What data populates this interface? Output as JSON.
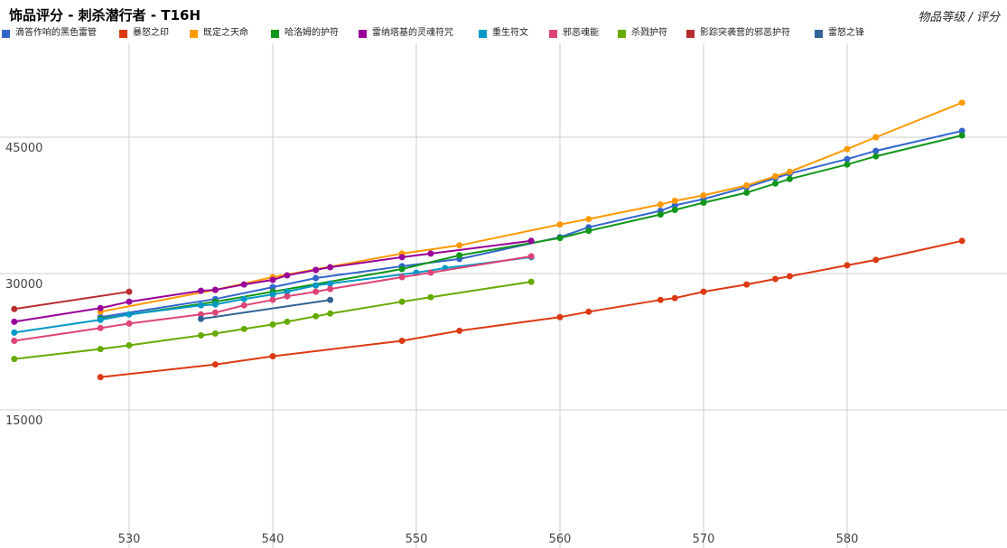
{
  "title": "饰品评分 - 刺杀潜行者 - T16H",
  "axis_note": "物品等级 / 评分",
  "chart_data": {
    "type": "line",
    "title": "饰品评分 - 刺杀潜行者 - T16H",
    "xlabel": "物品等级",
    "ylabel": "评分",
    "xlim": [
      522,
      588
    ],
    "ylim": [
      0,
      60000
    ],
    "x_ticks": [
      530,
      540,
      550,
      560,
      570,
      580
    ],
    "y_ticks": [
      15000,
      30000,
      45000
    ],
    "grid": true,
    "legend_position": "top",
    "series": [
      {
        "name": "滴答作响的黑色雷管",
        "color": "#3366cc",
        "x": [
          528,
          536,
          540,
          543,
          549,
          553,
          560,
          562,
          567,
          568,
          570,
          573,
          575,
          576,
          580,
          582,
          588
        ],
        "y": [
          25200,
          27200,
          28500,
          29500,
          30800,
          31600,
          34000,
          35100,
          36900,
          37500,
          38200,
          39500,
          40500,
          41000,
          42600,
          43500,
          45700
        ]
      },
      {
        "name": "暴怒之印",
        "color": "#dc3912",
        "x": [
          528,
          536,
          540,
          549,
          553,
          560,
          562,
          567,
          568,
          570,
          573,
          575,
          576,
          580,
          582,
          588
        ],
        "y": [
          18600,
          20000,
          20900,
          22600,
          23700,
          25200,
          25800,
          27100,
          27300,
          28000,
          28800,
          29400,
          29700,
          30900,
          31500,
          33600
        ]
      },
      {
        "name": "既定之天命",
        "color": "#ff9900",
        "x": [
          528,
          536,
          540,
          549,
          553,
          560,
          562,
          567,
          568,
          570,
          573,
          575,
          576,
          580,
          582,
          588
        ],
        "y": [
          25800,
          28200,
          29600,
          32200,
          33100,
          35400,
          36000,
          37600,
          38000,
          38600,
          39700,
          40700,
          41200,
          43700,
          45000,
          48800
        ]
      },
      {
        "name": "哈洛姆的护符",
        "color": "#109618",
        "x": [
          528,
          536,
          540,
          549,
          553,
          560,
          562,
          567,
          568,
          570,
          573,
          575,
          576,
          580,
          582,
          588
        ],
        "y": [
          25000,
          26900,
          28000,
          30500,
          32000,
          33900,
          34700,
          36500,
          37000,
          37800,
          38900,
          39900,
          40400,
          42000,
          42900,
          45200
        ]
      },
      {
        "name": "雷纳塔基的灵魂符咒",
        "color": "#990099",
        "x": [
          522,
          528,
          530,
          535,
          536,
          538,
          540,
          541,
          543,
          544,
          549,
          551,
          558
        ],
        "y": [
          24700,
          26200,
          26900,
          28100,
          28200,
          28800,
          29300,
          29800,
          30400,
          30700,
          31800,
          32200,
          33600
        ]
      },
      {
        "name": "重生符文",
        "color": "#0099c6",
        "x": [
          522,
          528,
          530,
          535,
          536,
          538,
          540,
          541,
          543,
          544,
          550,
          552,
          558
        ],
        "y": [
          23500,
          24900,
          25500,
          26500,
          26600,
          27200,
          27700,
          28000,
          28700,
          28900,
          30100,
          30600,
          31800
        ]
      },
      {
        "name": "邪恶魂能",
        "color": "#dd4477",
        "x": [
          522,
          528,
          530,
          535,
          536,
          538,
          540,
          541,
          543,
          544,
          549,
          551,
          558
        ],
        "y": [
          22600,
          24000,
          24500,
          25500,
          25700,
          26500,
          27100,
          27500,
          28000,
          28300,
          29600,
          30100,
          31900
        ]
      },
      {
        "name": "杀戮护符",
        "color": "#66aa00",
        "x": [
          522,
          528,
          530,
          535,
          536,
          538,
          540,
          541,
          543,
          544,
          549,
          551,
          558
        ],
        "y": [
          20600,
          21700,
          22100,
          23200,
          23400,
          23900,
          24400,
          24700,
          25300,
          25600,
          26900,
          27400,
          29100
        ]
      },
      {
        "name": "影踪突袭营的邪恶护符",
        "color": "#b82e2e",
        "x": [
          522,
          530
        ],
        "y": [
          26100,
          28000
        ]
      },
      {
        "name": "雷怒之锋",
        "color": "#316395",
        "x": [
          535,
          544
        ],
        "y": [
          25000,
          27100
        ]
      }
    ]
  }
}
